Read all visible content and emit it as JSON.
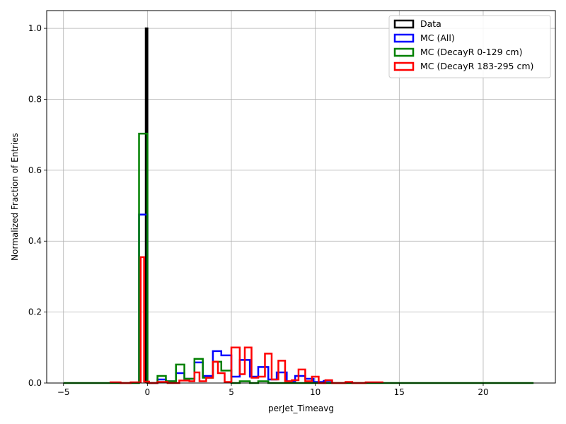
{
  "chart_data": {
    "type": "histogram",
    "title": "",
    "xlabel": "perJet_Timeavg",
    "ylabel": "Normalized Fraction of Entries",
    "xlim": [
      -6.0,
      24.3
    ],
    "ylim": [
      0,
      1.05
    ],
    "xticks": [
      -5,
      0,
      5,
      10,
      15,
      20
    ],
    "yticks": [
      0.0,
      0.2,
      0.4,
      0.6,
      0.8,
      1.0
    ],
    "grid": true,
    "legend_position": "top-right",
    "series": [
      {
        "name": "Data",
        "color": "#000000",
        "edges": [
          -0.1,
          0.0
        ],
        "values": [
          1.0
        ]
      },
      {
        "name": "MC (All)",
        "color": "#0000ff",
        "edges": [
          -0.5,
          0.0,
          0.6,
          1.1,
          1.7,
          2.2,
          2.8,
          3.3,
          3.9,
          4.4,
          5.0,
          5.5,
          6.1,
          6.6,
          7.2,
          7.7,
          8.3,
          8.8,
          9.4,
          9.9,
          10.5,
          11.0
        ],
        "values": [
          0.475,
          0.0,
          0.01,
          0.005,
          0.028,
          0.012,
          0.058,
          0.02,
          0.09,
          0.078,
          0.018,
          0.065,
          0.018,
          0.045,
          0.01,
          0.03,
          0.005,
          0.02,
          0.012,
          0.003,
          0.006
        ]
      },
      {
        "name": "MC (DecayR 0-129 cm)",
        "color": "#008000",
        "edges": [
          -5.0,
          -0.5,
          0.0,
          0.6,
          1.1,
          1.7,
          2.2,
          2.8,
          3.3,
          3.9,
          4.4,
          5.0,
          5.5,
          6.1,
          6.6,
          7.2,
          22.4,
          23.0
        ],
        "values": [
          0.0,
          0.703,
          0.0,
          0.02,
          0.005,
          0.052,
          0.012,
          0.068,
          0.015,
          0.06,
          0.035,
          0.0,
          0.005,
          0.0,
          0.005,
          0.0,
          0.0
        ]
      },
      {
        "name": "MC (DecayR 183-295 cm)",
        "color": "#ff0000",
        "edges": [
          -2.2,
          -1.6,
          -1.0,
          -0.4,
          -0.2,
          0.1,
          0.6,
          1.2,
          1.9,
          2.5,
          2.8,
          3.1,
          3.5,
          3.9,
          4.2,
          4.6,
          5.0,
          5.5,
          5.8,
          6.2,
          6.6,
          7.0,
          7.4,
          7.8,
          8.2,
          8.6,
          9.0,
          9.4,
          9.8,
          10.2,
          10.6,
          11.0,
          11.4,
          11.8,
          12.2,
          13.0,
          14.0
        ],
        "values": [
          0.002,
          0.0,
          0.002,
          0.355,
          0.004,
          0.0,
          0.003,
          0.0,
          0.007,
          0.005,
          0.03,
          0.005,
          0.015,
          0.06,
          0.028,
          0.003,
          0.1,
          0.025,
          0.1,
          0.015,
          0.018,
          0.083,
          0.01,
          0.063,
          0.005,
          0.008,
          0.038,
          0.005,
          0.018,
          0.0,
          0.008,
          0.0,
          0.0,
          0.003,
          0.0,
          0.002
        ]
      }
    ]
  }
}
